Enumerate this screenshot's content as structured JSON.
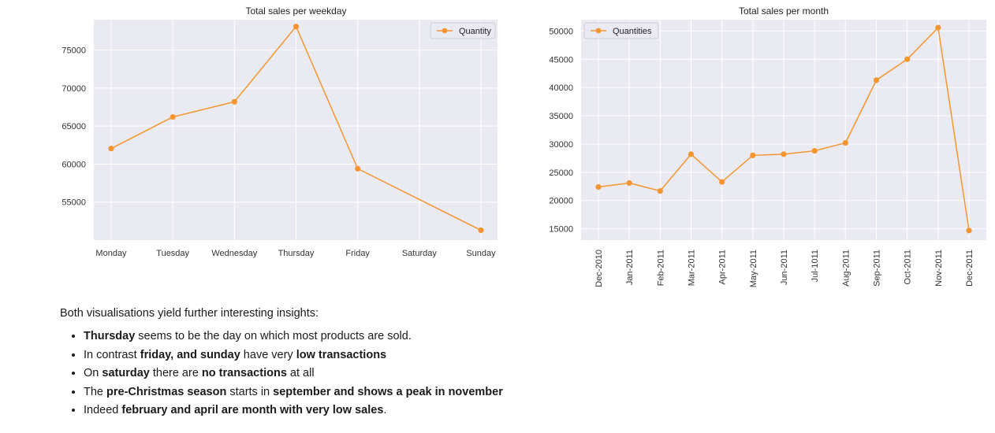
{
  "colors": {
    "series": "#f5952f",
    "plot_bg": "#eaeaf2",
    "grid": "#ffffff"
  },
  "chart_data": [
    {
      "type": "line",
      "title": "Total sales per weekday",
      "categories": [
        "Monday",
        "Tuesday",
        "Wednesday",
        "Thursday",
        "Friday",
        "Saturday",
        "Sunday"
      ],
      "series": [
        {
          "name": "Quantity",
          "points": [
            {
              "x": "Monday",
              "y": 62050
            },
            {
              "x": "Tuesday",
              "y": 66200
            },
            {
              "x": "Wednesday",
              "y": 68200
            },
            {
              "x": "Thursday",
              "y": 78100
            },
            {
              "x": "Friday",
              "y": 59400
            },
            {
              "x": "Sunday",
              "y": 51300
            }
          ]
        }
      ],
      "yticks": [
        55000,
        60000,
        65000,
        70000,
        75000
      ],
      "ylim": [
        50000,
        79000
      ],
      "legend": "top-right",
      "grid": true
    },
    {
      "type": "line",
      "title": "Total sales per month",
      "categories": [
        "Dec-2010",
        "Jan-2011",
        "Feb-2011",
        "Mar-2011",
        "Apr-2011",
        "May-2011",
        "Jun-2011",
        "Jul-1011",
        "Aug-2011",
        "Sep-2011",
        "Oct-2011",
        "Nov-2011",
        "Dec-2011"
      ],
      "series": [
        {
          "name": "Quantities",
          "points": [
            {
              "x": "Dec-2010",
              "y": 22400
            },
            {
              "x": "Jan-2011",
              "y": 23100
            },
            {
              "x": "Feb-2011",
              "y": 21700
            },
            {
              "x": "Mar-2011",
              "y": 28200
            },
            {
              "x": "Apr-2011",
              "y": 23300
            },
            {
              "x": "May-2011",
              "y": 28000
            },
            {
              "x": "Jun-2011",
              "y": 28200
            },
            {
              "x": "Jul-1011",
              "y": 28800
            },
            {
              "x": "Aug-2011",
              "y": 30200
            },
            {
              "x": "Sep-2011",
              "y": 41300
            },
            {
              "x": "Oct-2011",
              "y": 45000
            },
            {
              "x": "Nov-2011",
              "y": 50600
            },
            {
              "x": "Dec-2011",
              "y": 14700
            }
          ]
        }
      ],
      "yticks": [
        15000,
        20000,
        25000,
        30000,
        35000,
        40000,
        45000,
        50000
      ],
      "ylim": [
        13000,
        52000
      ],
      "legend": "top-left",
      "grid": true
    }
  ],
  "text": {
    "intro": "Both visualisations yield further interesting insights:",
    "bullets": [
      [
        {
          "t": "Thursday",
          "b": true
        },
        {
          "t": " seems to be the day on which most products are sold."
        }
      ],
      [
        {
          "t": "In contrast "
        },
        {
          "t": "friday, and sunday",
          "b": true
        },
        {
          "t": " have very "
        },
        {
          "t": "low transactions",
          "b": true
        }
      ],
      [
        {
          "t": "On "
        },
        {
          "t": "saturday",
          "b": true
        },
        {
          "t": " there are "
        },
        {
          "t": "no transactions",
          "b": true
        },
        {
          "t": " at all"
        }
      ],
      [
        {
          "t": "The "
        },
        {
          "t": "pre-Christmas season",
          "b": true
        },
        {
          "t": " starts in "
        },
        {
          "t": "september and shows a peak in november",
          "b": true
        }
      ],
      [
        {
          "t": "Indeed "
        },
        {
          "t": "february and april are month with very low sales",
          "b": true
        },
        {
          "t": "."
        }
      ]
    ]
  }
}
